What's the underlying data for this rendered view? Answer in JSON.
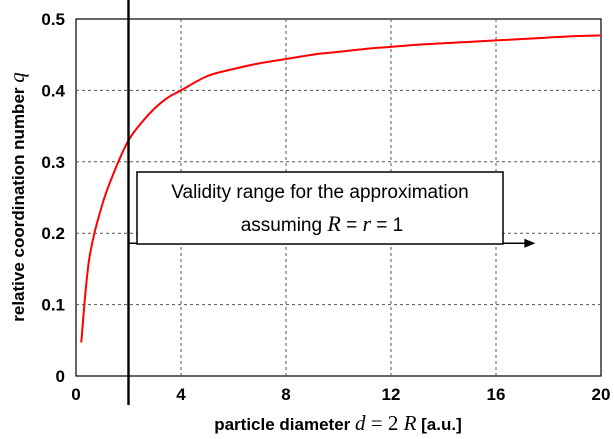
{
  "chart_data": {
    "type": "line",
    "x": [
      0.2,
      0.5,
      1,
      1.5,
      2,
      2.5,
      3,
      3.5,
      4,
      5,
      6,
      7,
      8,
      9,
      10,
      11,
      12,
      13,
      14,
      15,
      16,
      17,
      18,
      19,
      20
    ],
    "series": [
      {
        "color": "#ff0000",
        "values": [
          0.047,
          0.163,
          0.24,
          0.29,
          0.33,
          0.355,
          0.375,
          0.39,
          0.4,
          0.42,
          0.43,
          0.438,
          0.444,
          0.45,
          0.454,
          0.458,
          0.461,
          0.464,
          0.466,
          0.468,
          0.47,
          0.472,
          0.474,
          0.476,
          0.477
        ]
      }
    ],
    "xlim": [
      0,
      20
    ],
    "ylim": [
      0,
      0.5
    ],
    "xticks": [
      "0",
      "4",
      "8",
      "12",
      "16",
      "20"
    ],
    "yticks": [
      "0",
      "0.1",
      "0.2",
      "0.3",
      "0.4",
      "0.5"
    ],
    "xlabel": {
      "prefix": "particle diameter ",
      "d": "d",
      "eq": " = 2 ",
      "R": "R",
      "suffix": " [a.u.]"
    },
    "ylabel": {
      "text": "relative coordination number ",
      "q": "q"
    },
    "grid": true,
    "vline_x": 2,
    "arrow": {
      "from_x": 2,
      "to_x": 17.5,
      "y": 0.186
    },
    "annotation": {
      "line1": "Validity range for the approximation",
      "line2_prefix": "assuming",
      "R": "R",
      "eq1": " = ",
      "r": "r",
      "eq2": " = 1"
    }
  }
}
